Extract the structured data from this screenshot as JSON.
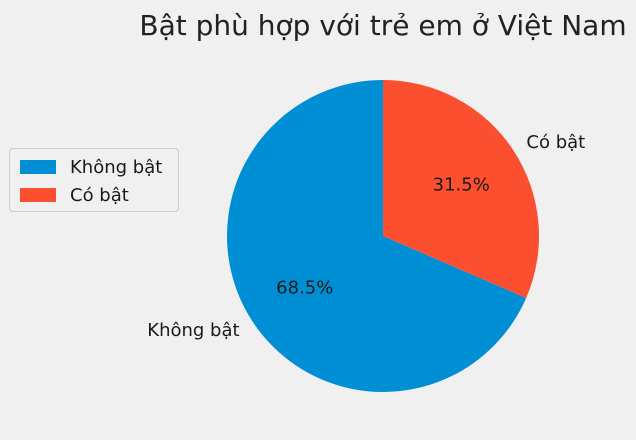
{
  "chart_data": {
    "type": "pie",
    "title": "Bật phù hợp với trẻ em ở Việt Nam",
    "categories": [
      "Không bật",
      "Có bật"
    ],
    "values": [
      68.5,
      31.5
    ],
    "percent_labels": [
      "68.5%",
      "31.5%"
    ],
    "colors": [
      "#008fd5",
      "#fc4f30"
    ],
    "start_angle_deg": 90,
    "direction": "counterclockwise",
    "legend": {
      "placement": "center-left",
      "entries": [
        "Không bật",
        "Có bật"
      ]
    }
  }
}
